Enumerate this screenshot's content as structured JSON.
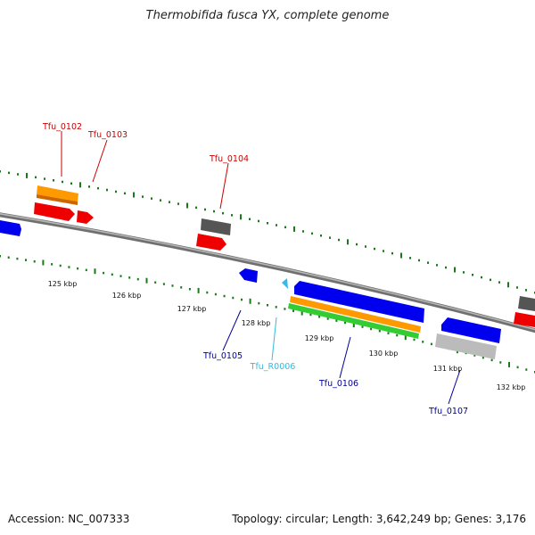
{
  "title": "Thermobifida fusca YX, complete genome",
  "footer": {
    "accession": "Accession: NC_007333",
    "summary": "Topology: circular; Length: 3,642,249 bp; Genes: 3,176"
  },
  "colors": {
    "backbone": "#8a8a8a",
    "ticks": "#1a7a1a",
    "forward_label": "#cc0000",
    "reverse_label": "#000099",
    "rna_label": "#33bbdd",
    "blue": "#0000ee",
    "red": "#ee0000",
    "orange": "#ff9900",
    "green": "#33cc33",
    "gray": "#555555",
    "light_gray": "#bbbbbb",
    "cyan": "#33bbee"
  },
  "scale_labels": [
    "125 kbp",
    "126 kbp",
    "127 kbp",
    "128 kbp",
    "129 kbp",
    "130 kbp",
    "131 kbp",
    "132 kbp"
  ],
  "gene_labels": [
    {
      "text": "Tfu_0102",
      "strand": "forward"
    },
    {
      "text": "Tfu_0103",
      "strand": "forward"
    },
    {
      "text": "Tfu_0104",
      "strand": "forward"
    },
    {
      "text": "Tfu_0105",
      "strand": "reverse"
    },
    {
      "text": "Tfu_R0006",
      "strand": "rna"
    },
    {
      "text": "Tfu_0106",
      "strand": "reverse"
    },
    {
      "text": "Tfu_0107",
      "strand": "reverse"
    }
  ]
}
